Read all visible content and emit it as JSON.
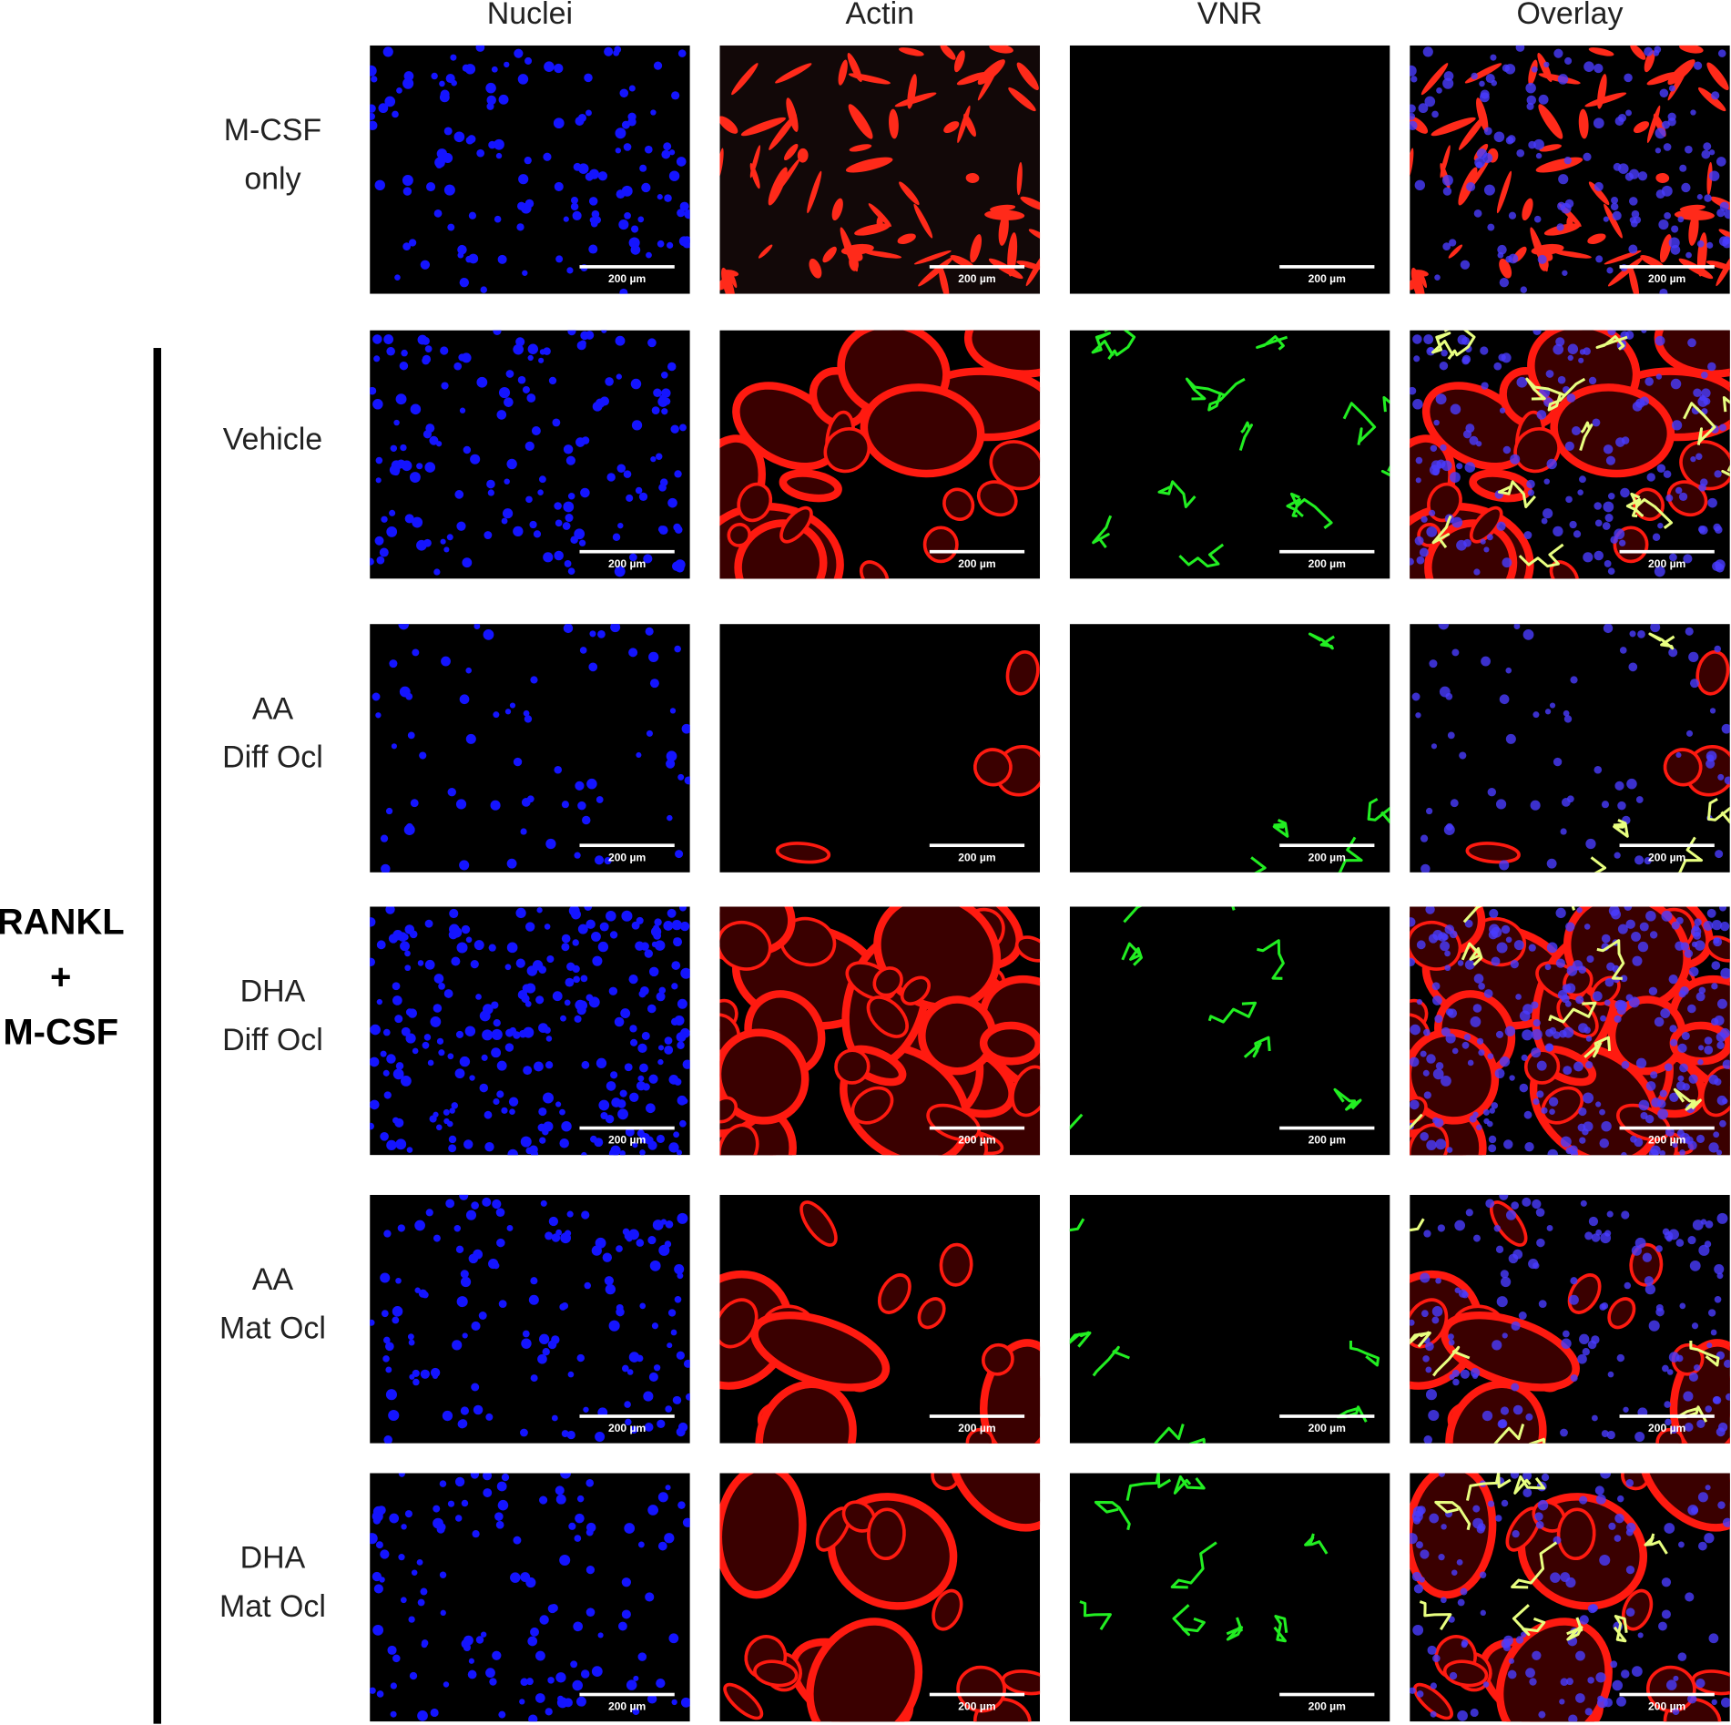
{
  "column_headers": [
    "Nuclei",
    "Actin",
    "VNR",
    "Overlay"
  ],
  "group_label": [
    "RANKL",
    "+",
    "M-CSF"
  ],
  "rows": [
    {
      "label": [
        "M-CSF",
        "only"
      ]
    },
    {
      "label": [
        "Vehicle"
      ]
    },
    {
      "label": [
        "AA",
        "Diff Ocl"
      ]
    },
    {
      "label": [
        "DHA",
        "Diff Ocl"
      ]
    },
    {
      "label": [
        "AA",
        "Mat Ocl"
      ]
    },
    {
      "label": [
        "DHA",
        "Mat Ocl"
      ]
    }
  ],
  "scale_bar_label": "200 µm"
}
